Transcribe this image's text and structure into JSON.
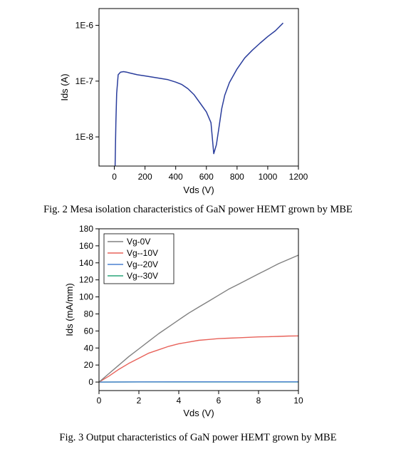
{
  "figure1": {
    "caption": "Fig. 2 Mesa isolation characteristics of GaN power HEMT grown by MBE"
  },
  "figure2": {
    "caption": "Fig. 3 Output characteristics of GaN power HEMT grown by MBE"
  },
  "chart_data": [
    {
      "type": "line",
      "title": "",
      "xlabel": "Vds (V)",
      "ylabel": "Ids (A)",
      "xlim": [
        -100,
        1200
      ],
      "ylim": [
        3e-09,
        2e-06
      ],
      "y_scale": "log",
      "x_ticks": [
        0,
        200,
        400,
        600,
        800,
        1000,
        1200
      ],
      "x_tick_labels": [
        "0",
        "200",
        "400",
        "600",
        "800",
        "1000",
        "1200"
      ],
      "y_ticks": [
        1e-08,
        1e-07,
        1e-06
      ],
      "y_tick_labels": [
        "1E-8",
        "1E-7",
        "1E-6"
      ],
      "grid": false,
      "line_color": "#2a3d9c",
      "series": [
        {
          "x": [
            5,
            10,
            15,
            25,
            40,
            60,
            80,
            100,
            150,
            200,
            250,
            300,
            350,
            400,
            440,
            480,
            520,
            560,
            600,
            630,
            648,
            665,
            680,
            700,
            720,
            750,
            800,
            850,
            900,
            950,
            1000,
            1050,
            1100
          ],
          "y": [
            3e-09,
            1.8e-08,
            6e-08,
            1.3e-07,
            1.45e-07,
            1.48e-07,
            1.45e-07,
            1.4e-07,
            1.3e-07,
            1.24e-07,
            1.18e-07,
            1.12e-07,
            1.06e-07,
            9.6e-08,
            8.7e-08,
            7.3e-08,
            5.7e-08,
            4e-08,
            2.8e-08,
            1.8e-08,
            5e-09,
            7.2e-09,
            1.35e-08,
            3.2e-08,
            5.6e-08,
            9.4e-08,
            1.65e-07,
            2.6e-07,
            3.6e-07,
            4.8e-07,
            6.3e-07,
            8e-07,
            1.1e-06
          ]
        }
      ]
    },
    {
      "type": "line",
      "title": "",
      "xlabel": "Vds (V)",
      "ylabel": "Ids (mA/mm)",
      "xlim": [
        0,
        10
      ],
      "ylim": [
        -10,
        180
      ],
      "x_ticks": [
        0,
        2,
        4,
        6,
        8,
        10
      ],
      "x_tick_labels": [
        "0",
        "2",
        "4",
        "6",
        "8",
        "10"
      ],
      "y_ticks": [
        0,
        20,
        40,
        60,
        80,
        100,
        120,
        140,
        160,
        180
      ],
      "y_tick_labels": [
        "0",
        "20",
        "40",
        "60",
        "80",
        "100",
        "120",
        "140",
        "160",
        "180"
      ],
      "grid": false,
      "legend_position": "top-left",
      "series": [
        {
          "name": "Vg-0V",
          "color": "#808080",
          "x": [
            0,
            0.5,
            1,
            1.5,
            2,
            2.5,
            3,
            3.5,
            4,
            4.5,
            5,
            5.5,
            6,
            6.5,
            7,
            7.5,
            8,
            8.5,
            9,
            9.5,
            10
          ],
          "y": [
            0,
            10,
            20,
            30,
            39,
            48,
            57,
            65,
            73,
            81,
            88,
            95,
            102,
            109,
            115,
            121,
            127,
            133,
            139,
            144,
            149
          ]
        },
        {
          "name": "Vg--10V",
          "color": "#e8625a",
          "x": [
            0,
            0.5,
            1,
            1.5,
            2,
            2.5,
            3,
            3.5,
            4,
            4.5,
            5,
            5.5,
            6,
            6.5,
            7,
            7.5,
            8,
            8.5,
            9,
            9.5,
            10
          ],
          "y": [
            0,
            7,
            15,
            22,
            28,
            34,
            38,
            42,
            45,
            47,
            49,
            50,
            51,
            51.5,
            52,
            52.5,
            53,
            53.3,
            53.6,
            54,
            54.2
          ]
        },
        {
          "name": "Vg--20V",
          "color": "#4a80d0",
          "x": [
            0,
            2,
            4,
            6,
            8,
            10
          ],
          "y": [
            0,
            0.2,
            0.3,
            0.3,
            0.3,
            0.3
          ]
        },
        {
          "name": "Vg--30V",
          "color": "#2aa67a",
          "x": [
            0,
            2,
            4,
            6,
            8,
            10
          ],
          "y": [
            0,
            0.1,
            0.1,
            0.1,
            0.1,
            0.1
          ]
        }
      ]
    }
  ]
}
